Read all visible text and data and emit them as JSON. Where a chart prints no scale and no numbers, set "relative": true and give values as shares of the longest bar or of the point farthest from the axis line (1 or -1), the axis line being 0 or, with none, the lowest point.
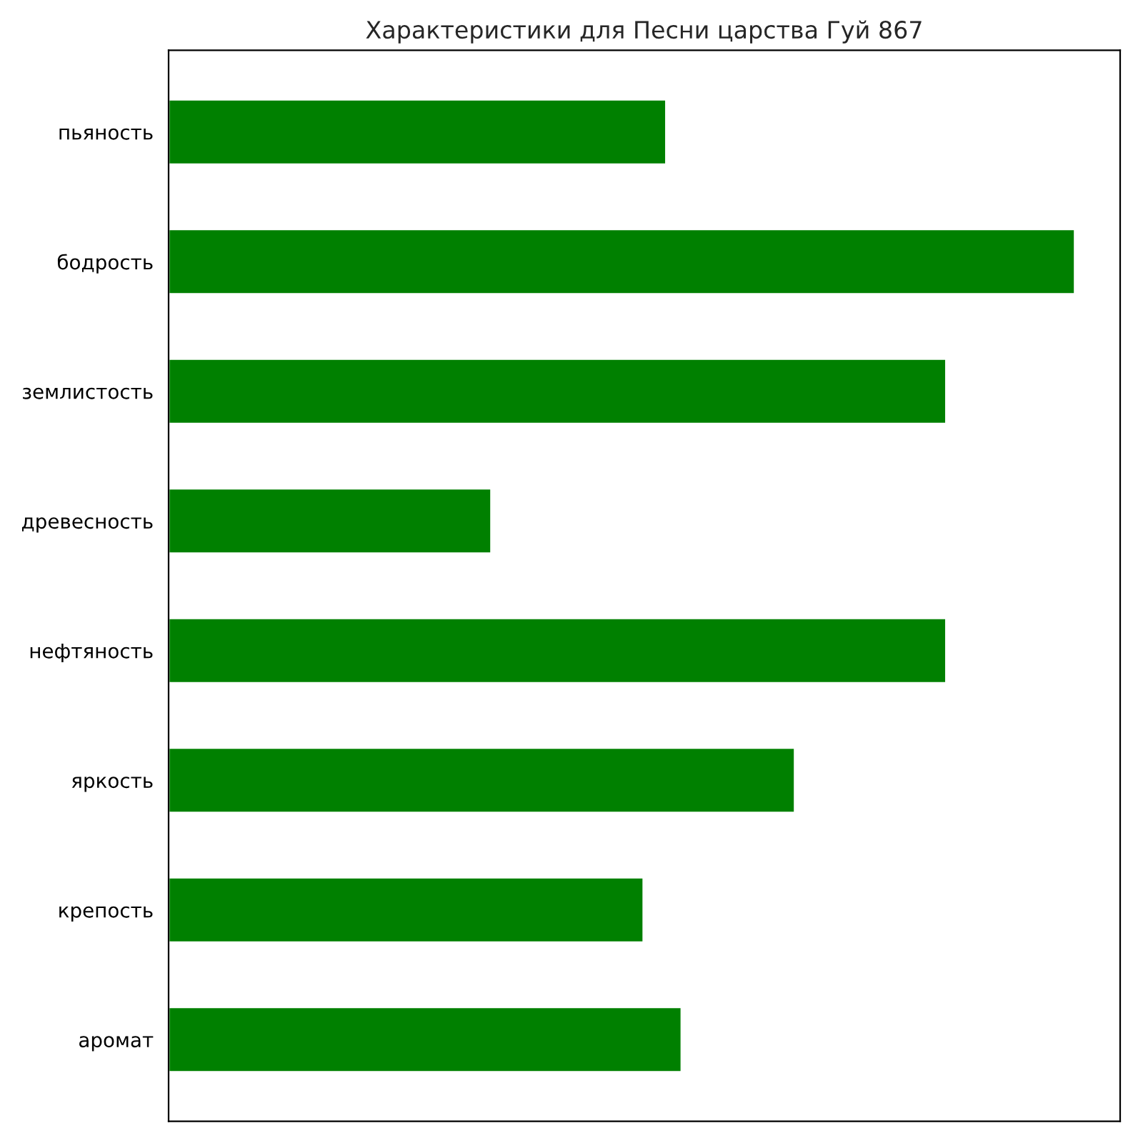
{
  "chart_data": {
    "type": "bar",
    "orientation": "horizontal",
    "relative": true,
    "title": "Характеристики для Песни царства Гуй 867",
    "categories": [
      "пьяность",
      "бодрость",
      "землистость",
      "древесность",
      "нефтяность",
      "яркость",
      "крепость",
      "аромат"
    ],
    "values": [
      0.549,
      1,
      0.858,
      0.356,
      0.858,
      0.691,
      0.524,
      0.566
    ],
    "color": "#008000",
    "grid": false,
    "legend": false
  }
}
